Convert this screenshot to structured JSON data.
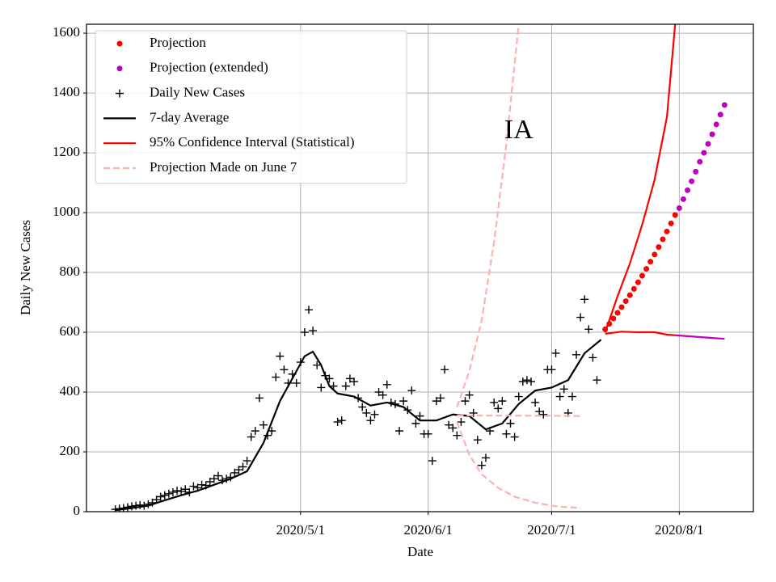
{
  "chart_data": {
    "type": "line",
    "xlabel": "Date",
    "ylabel": "Daily New Cases",
    "annotations": [
      {
        "text": "IA",
        "x": "2020-06-23",
        "y": 1270
      }
    ],
    "xlim": [
      "2020-03-10",
      "2020-08-19"
    ],
    "xticks": [
      {
        "value": "2020-05-01",
        "label": "2020/5/1"
      },
      {
        "value": "2020-06-01",
        "label": "2020/6/1"
      },
      {
        "value": "2020-07-01",
        "label": "2020/7/1"
      },
      {
        "value": "2020-08-01",
        "label": "2020/8/1"
      }
    ],
    "ylim": [
      0,
      1630
    ],
    "yticks": [
      0,
      200,
      400,
      600,
      800,
      1000,
      1200,
      1400,
      1600
    ],
    "grid": true,
    "legend": "upper left",
    "series": [
      {
        "name": "Projection",
        "color": "#ff0000",
        "marker": "dot",
        "x": [
          "2020-07-14",
          "2020-07-15",
          "2020-07-16",
          "2020-07-17",
          "2020-07-18",
          "2020-07-19",
          "2020-07-20",
          "2020-07-21",
          "2020-07-22",
          "2020-07-23",
          "2020-07-24",
          "2020-07-25",
          "2020-07-26",
          "2020-07-27",
          "2020-07-28",
          "2020-07-29",
          "2020-07-30",
          "2020-07-31"
        ],
        "values": [
          610,
          628,
          646,
          665,
          684,
          704,
          724,
          745,
          767,
          789,
          812,
          836,
          860,
          885,
          911,
          937,
          964,
          992
        ]
      },
      {
        "name": "Projection (extended)",
        "color": "#bf00bf",
        "marker": "dot",
        "x": [
          "2020-08-01",
          "2020-08-02",
          "2020-08-03",
          "2020-08-04",
          "2020-08-05",
          "2020-08-06",
          "2020-08-07",
          "2020-08-08",
          "2020-08-09",
          "2020-08-10",
          "2020-08-11",
          "2020-08-12"
        ],
        "values": [
          1015,
          1045,
          1075,
          1105,
          1137,
          1170,
          1200,
          1230,
          1262,
          1295,
          1328,
          1360
        ]
      },
      {
        "name": "Daily New Cases",
        "color": "#000000",
        "marker": "plus",
        "x": [
          "2020-03-17",
          "2020-03-18",
          "2020-03-19",
          "2020-03-20",
          "2020-03-21",
          "2020-03-22",
          "2020-03-23",
          "2020-03-24",
          "2020-03-25",
          "2020-03-26",
          "2020-03-27",
          "2020-03-28",
          "2020-03-29",
          "2020-03-30",
          "2020-03-31",
          "2020-04-01",
          "2020-04-02",
          "2020-04-03",
          "2020-04-04",
          "2020-04-05",
          "2020-04-06",
          "2020-04-07",
          "2020-04-08",
          "2020-04-09",
          "2020-04-10",
          "2020-04-11",
          "2020-04-12",
          "2020-04-13",
          "2020-04-14",
          "2020-04-15",
          "2020-04-16",
          "2020-04-17",
          "2020-04-18",
          "2020-04-19",
          "2020-04-20",
          "2020-04-21",
          "2020-04-22",
          "2020-04-23",
          "2020-04-24",
          "2020-04-25",
          "2020-04-26",
          "2020-04-27",
          "2020-04-28",
          "2020-04-29",
          "2020-04-30",
          "2020-05-01",
          "2020-05-02",
          "2020-05-03",
          "2020-05-04",
          "2020-05-05",
          "2020-05-06",
          "2020-05-07",
          "2020-05-08",
          "2020-05-09",
          "2020-05-10",
          "2020-05-11",
          "2020-05-12",
          "2020-05-13",
          "2020-05-14",
          "2020-05-15",
          "2020-05-16",
          "2020-05-17",
          "2020-05-18",
          "2020-05-19",
          "2020-05-20",
          "2020-05-21",
          "2020-05-22",
          "2020-05-23",
          "2020-05-24",
          "2020-05-25",
          "2020-05-26",
          "2020-05-27",
          "2020-05-28",
          "2020-05-29",
          "2020-05-30",
          "2020-05-31",
          "2020-06-01",
          "2020-06-02",
          "2020-06-03",
          "2020-06-04",
          "2020-06-05",
          "2020-06-06",
          "2020-06-07",
          "2020-06-08",
          "2020-06-09",
          "2020-06-10",
          "2020-06-11",
          "2020-06-12",
          "2020-06-13",
          "2020-06-14",
          "2020-06-15",
          "2020-06-16",
          "2020-06-17",
          "2020-06-18",
          "2020-06-19",
          "2020-06-20",
          "2020-06-21",
          "2020-06-22",
          "2020-06-23",
          "2020-06-24",
          "2020-06-25",
          "2020-06-26",
          "2020-06-27",
          "2020-06-28",
          "2020-06-29",
          "2020-06-30",
          "2020-07-01",
          "2020-07-02",
          "2020-07-03",
          "2020-07-04",
          "2020-07-05",
          "2020-07-06",
          "2020-07-07",
          "2020-07-08",
          "2020-07-09",
          "2020-07-10",
          "2020-07-11",
          "2020-07-12"
        ],
        "values": [
          8,
          10,
          12,
          15,
          18,
          20,
          22,
          20,
          25,
          30,
          40,
          50,
          55,
          60,
          65,
          70,
          68,
          75,
          65,
          85,
          80,
          90,
          88,
          100,
          110,
          120,
          105,
          110,
          115,
          130,
          140,
          150,
          170,
          250,
          270,
          380,
          290,
          255,
          270,
          450,
          520,
          475,
          430,
          460,
          430,
          500,
          600,
          675,
          605,
          490,
          415,
          455,
          445,
          420,
          300,
          305,
          420,
          445,
          435,
          380,
          350,
          330,
          305,
          325,
          400,
          390,
          425,
          365,
          360,
          270,
          370,
          340,
          405,
          295,
          320,
          260,
          260,
          170,
          370,
          380,
          475,
          290,
          280,
          255,
          300,
          370,
          390,
          330,
          240,
          155,
          180,
          270,
          365,
          345,
          370,
          260,
          295,
          250,
          385,
          435,
          440,
          435,
          365,
          335,
          325,
          475,
          475,
          530,
          385,
          410,
          330,
          385,
          525,
          650,
          710,
          610,
          515,
          440
        ]
      },
      {
        "name": "7-day Average",
        "color": "#000000",
        "x": [
          "2020-03-17",
          "2020-03-21",
          "2020-03-25",
          "2020-03-29",
          "2020-04-02",
          "2020-04-06",
          "2020-04-10",
          "2020-04-14",
          "2020-04-18",
          "2020-04-22",
          "2020-04-26",
          "2020-04-30",
          "2020-05-02",
          "2020-05-04",
          "2020-05-06",
          "2020-05-08",
          "2020-05-10",
          "2020-05-14",
          "2020-05-18",
          "2020-05-22",
          "2020-05-26",
          "2020-05-30",
          "2020-06-03",
          "2020-06-07",
          "2020-06-11",
          "2020-06-15",
          "2020-06-19",
          "2020-06-23",
          "2020-06-27",
          "2020-07-01",
          "2020-07-05",
          "2020-07-09",
          "2020-07-13"
        ],
        "values": [
          5,
          12,
          20,
          38,
          55,
          70,
          90,
          110,
          135,
          230,
          370,
          470,
          520,
          535,
          490,
          420,
          395,
          385,
          355,
          365,
          350,
          305,
          305,
          325,
          320,
          275,
          295,
          360,
          405,
          415,
          440,
          530,
          575
        ]
      },
      {
        "name": "95% Confidence Interval (Statistical)",
        "color": "#ff0000",
        "x": [
          "2020-07-14",
          "2020-07-17",
          "2020-07-20",
          "2020-07-23",
          "2020-07-26",
          "2020-07-29",
          "2020-07-31"
        ],
        "values": [
          600,
          720,
          830,
          960,
          1110,
          1320,
          1630
        ]
      },
      {
        "name": "Projection Made on June 7",
        "color": "#ffb0b0",
        "dash": true,
        "x": [
          "2020-06-08",
          "2020-06-11",
          "2020-06-14",
          "2020-06-17",
          "2020-06-20",
          "2020-06-23"
        ],
        "values": [
          350,
          470,
          640,
          900,
          1230,
          1630
        ]
      },
      {
        "color": "#ff0000",
        "x": [
          "2020-07-14",
          "2020-07-18",
          "2020-07-22",
          "2020-07-26",
          "2020-07-29",
          "2020-07-31"
        ],
        "values": [
          595,
          602,
          600,
          600,
          592,
          590
        ]
      },
      {
        "color": "#bf00bf",
        "x": [
          "2020-07-31",
          "2020-08-12"
        ],
        "values": [
          590,
          578
        ]
      },
      {
        "color": "#ffb0b0",
        "dash": true,
        "x": [
          "2020-06-08",
          "2020-07-08"
        ],
        "values": [
          322,
          320
        ]
      },
      {
        "color": "#ffb0b0",
        "dash": true,
        "x": [
          "2020-06-08",
          "2020-06-11",
          "2020-06-14",
          "2020-06-18",
          "2020-06-22",
          "2020-06-27",
          "2020-07-02",
          "2020-07-08"
        ],
        "values": [
          300,
          190,
          125,
          80,
          50,
          30,
          18,
          12
        ]
      }
    ]
  }
}
